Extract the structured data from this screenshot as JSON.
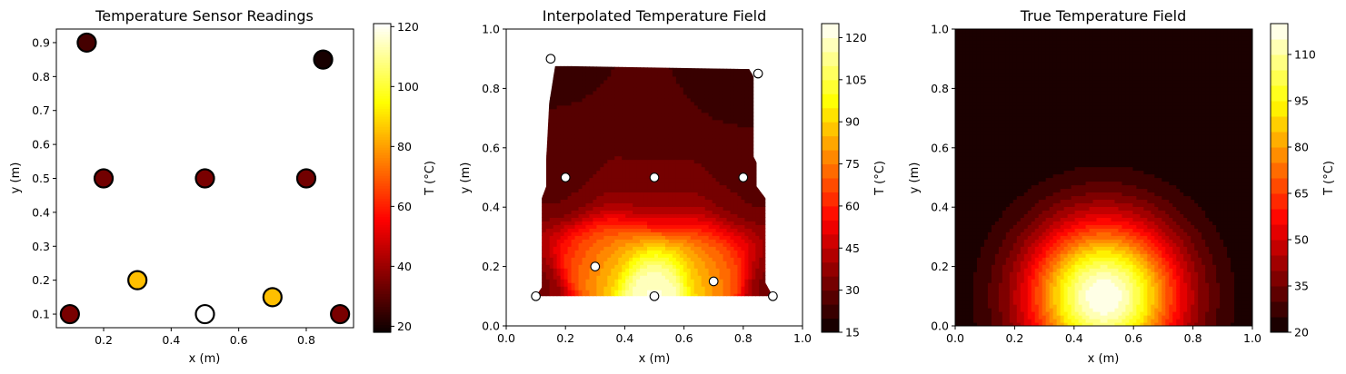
{
  "chart_data": [
    {
      "type": "scatter",
      "title": "Temperature Sensor Readings",
      "xlabel": "x (m)",
      "ylabel": "y (m)",
      "xlim": [
        0.06,
        0.94
      ],
      "ylim": [
        0.06,
        0.94
      ],
      "xticks": [
        "0.2",
        "0.4",
        "0.6",
        "0.8"
      ],
      "yticks": [
        "0.1",
        "0.2",
        "0.3",
        "0.4",
        "0.5",
        "0.6",
        "0.7",
        "0.8",
        "0.9"
      ],
      "colorbar": {
        "label": "T (°C)",
        "range": [
          18,
          121
        ],
        "ticks": [
          "20",
          "40",
          "60",
          "80",
          "100",
          "120"
        ],
        "colormap": "hot"
      },
      "points": [
        {
          "x": 0.1,
          "y": 0.1,
          "temp": 35
        },
        {
          "x": 0.5,
          "y": 0.1,
          "temp": 121
        },
        {
          "x": 0.9,
          "y": 0.1,
          "temp": 35
        },
        {
          "x": 0.3,
          "y": 0.2,
          "temp": 85
        },
        {
          "x": 0.7,
          "y": 0.15,
          "temp": 85
        },
        {
          "x": 0.2,
          "y": 0.5,
          "temp": 34
        },
        {
          "x": 0.5,
          "y": 0.5,
          "temp": 35
        },
        {
          "x": 0.8,
          "y": 0.5,
          "temp": 34
        },
        {
          "x": 0.15,
          "y": 0.9,
          "temp": 27
        },
        {
          "x": 0.85,
          "y": 0.85,
          "temp": 20
        }
      ]
    },
    {
      "type": "heatmap",
      "title": "Interpolated Temperature Field",
      "xlabel": "x (m)",
      "ylabel": "y (m)",
      "xlim": [
        0,
        1
      ],
      "ylim": [
        0,
        1
      ],
      "xticks": [
        "0.0",
        "0.2",
        "0.4",
        "0.6",
        "0.8",
        "1.0"
      ],
      "yticks": [
        "0.0",
        "0.2",
        "0.4",
        "0.6",
        "0.8",
        "1.0"
      ],
      "colorbar": {
        "label": "T (°C)",
        "range": [
          15,
          125
        ],
        "ticks": [
          "15",
          "30",
          "45",
          "60",
          "75",
          "90",
          "105",
          "120"
        ],
        "colormap": "hot",
        "levels": 22
      },
      "sensor_points": [
        [
          0.1,
          0.1
        ],
        [
          0.5,
          0.1
        ],
        [
          0.9,
          0.1
        ],
        [
          0.3,
          0.2
        ],
        [
          0.7,
          0.15
        ],
        [
          0.2,
          0.5
        ],
        [
          0.5,
          0.5
        ],
        [
          0.8,
          0.5
        ],
        [
          0.15,
          0.9
        ],
        [
          0.85,
          0.85
        ]
      ]
    },
    {
      "type": "heatmap",
      "title": "True Temperature Field",
      "xlabel": "x (m)",
      "ylabel": "y (m)",
      "xlim": [
        0,
        1
      ],
      "ylim": [
        0,
        1
      ],
      "xticks": [
        "0.0",
        "0.2",
        "0.4",
        "0.6",
        "0.8",
        "1.0"
      ],
      "yticks": [
        "0.0",
        "0.2",
        "0.4",
        "0.6",
        "0.8",
        "1.0"
      ],
      "colorbar": {
        "label": "T (°C)",
        "range": [
          20,
          120
        ],
        "ticks": [
          "20",
          "35",
          "50",
          "65",
          "80",
          "95",
          "110"
        ],
        "colormap": "hot",
        "levels": 20
      },
      "field": {
        "base": 20,
        "peak": 120,
        "center": [
          0.5,
          0.1
        ]
      }
    }
  ]
}
